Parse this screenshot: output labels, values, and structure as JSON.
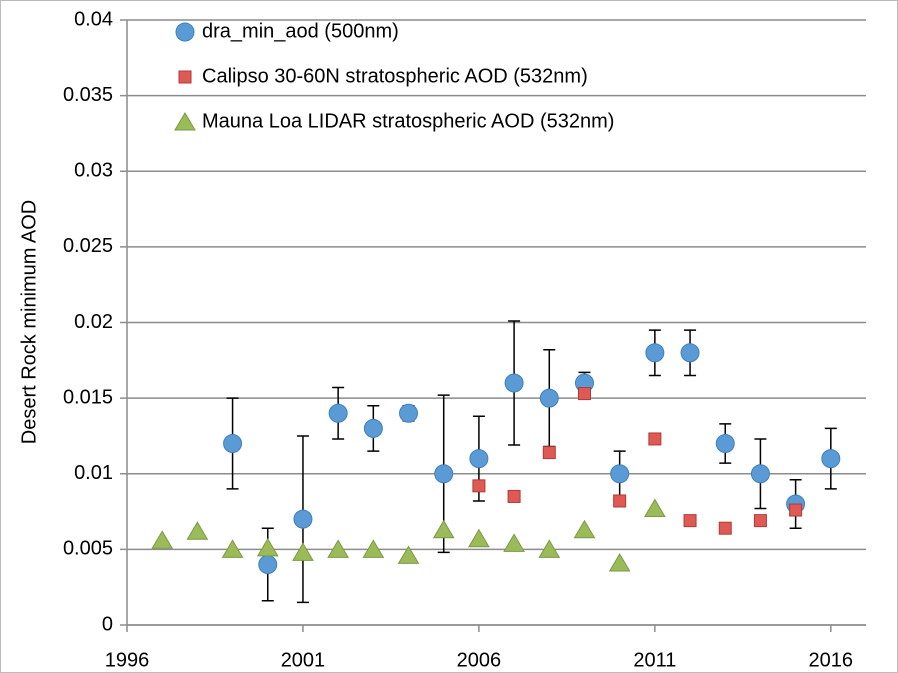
{
  "chart_data": {
    "type": "scatter",
    "y_label": "Desert Rock minimum AOD",
    "x": [
      1997,
      1998,
      1999,
      2000,
      2001,
      2002,
      2003,
      2004,
      2005,
      2006,
      2007,
      2008,
      2009,
      2010,
      2011,
      2012,
      2013,
      2014,
      2015,
      2016
    ],
    "series": [
      {
        "name": "dra_min_aod (500nm)",
        "color": "#5b9bd5",
        "marker": "circle",
        "values": [
          null,
          null,
          0.012,
          0.004,
          0.007,
          0.014,
          0.013,
          0.014,
          0.01,
          0.011,
          0.016,
          0.015,
          0.016,
          0.01,
          0.018,
          0.018,
          0.012,
          0.01,
          0.008,
          0.011
        ],
        "errors": [
          null,
          null,
          0.003,
          0.0024,
          0.0055,
          0.0017,
          0.0015,
          0.0005,
          0.0052,
          0.0028,
          0.0041,
          0.0032,
          0.0007,
          0.0015,
          0.0015,
          0.0015,
          0.0013,
          0.0023,
          0.0016,
          0.002
        ]
      },
      {
        "name": "Calipso 30-60N stratospheric AOD (532nm)",
        "color": "#e05a55",
        "marker": "square",
        "values": [
          null,
          null,
          null,
          null,
          null,
          null,
          null,
          null,
          null,
          0.0092,
          0.0085,
          0.0114,
          0.0153,
          0.0082,
          0.0123,
          0.0069,
          0.0064,
          0.0069,
          0.0076,
          null
        ]
      },
      {
        "name": "Mauna Loa LIDAR stratospheric AOD (532nm)",
        "color": "#9bbb59",
        "marker": "triangle",
        "values": [
          0.0056,
          0.0062,
          0.005,
          0.0051,
          0.0048,
          0.005,
          0.005,
          0.0046,
          0.0063,
          0.0057,
          0.0054,
          0.005,
          0.0063,
          0.0041,
          0.0077,
          null,
          null,
          null,
          null,
          null
        ]
      }
    ],
    "xlim": [
      1996,
      2017
    ],
    "xticks": [
      1996,
      2001,
      2006,
      2011,
      2016
    ],
    "ylim": [
      0,
      0.04
    ],
    "yticks": [
      0,
      0.005,
      0.01,
      0.015,
      0.02,
      0.025,
      0.03,
      0.035,
      0.04
    ],
    "grid": true,
    "legend": "top-left"
  }
}
